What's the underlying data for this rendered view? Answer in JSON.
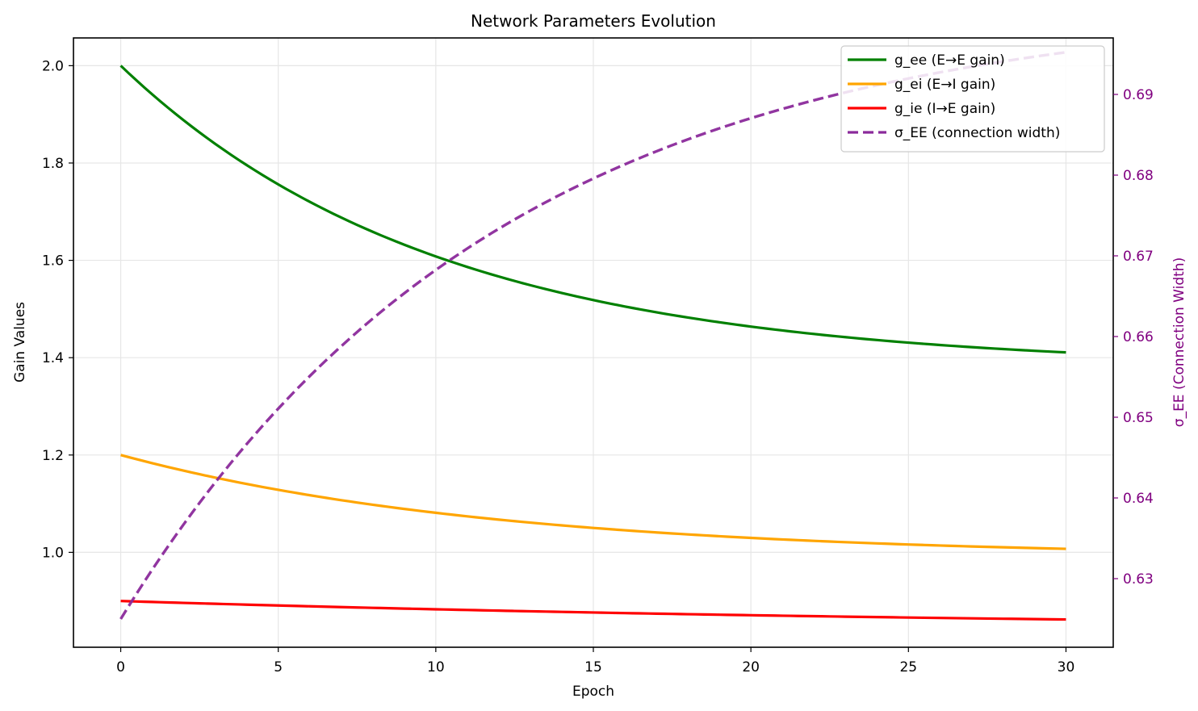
{
  "chart_data": {
    "type": "line",
    "title": "Network Parameters Evolution",
    "xlabel": "Epoch",
    "ylabel": "Gain Values",
    "y2label": "σ_EE (Connection Width)",
    "xlim": [
      -1.5,
      31.5
    ],
    "ylim": [
      0.805,
      2.057
    ],
    "y2lim": [
      0.6215,
      0.697
    ],
    "xticks": [
      0,
      5,
      10,
      15,
      20,
      25,
      30
    ],
    "yticks": [
      1.0,
      1.2,
      1.4,
      1.6,
      1.8,
      2.0
    ],
    "y2ticks": [
      0.63,
      0.64,
      0.65,
      0.66,
      0.67,
      0.68,
      0.69
    ],
    "grid": true,
    "legend_position": "top-right",
    "series": [
      {
        "name": "g_ee (E→E gain)",
        "color": "#008000",
        "axis": "left",
        "style": "solid",
        "model": {
          "start": 2.0,
          "end": 1.38,
          "tau": 10
        },
        "points": [
          [
            0,
            2.0
          ],
          [
            5,
            1.765
          ],
          [
            10,
            1.621
          ],
          [
            15,
            1.533
          ],
          [
            20,
            1.48
          ],
          [
            25,
            1.448
          ],
          [
            30,
            1.428
          ]
        ]
      },
      {
        "name": "g_ei (E→I gain)",
        "color": "#FFA500",
        "axis": "left",
        "style": "solid",
        "model": {
          "start": 1.2,
          "end": 0.99,
          "tau": 12
        },
        "points": [
          [
            0,
            1.2
          ],
          [
            5,
            1.143
          ],
          [
            10,
            1.102
          ],
          [
            15,
            1.073
          ],
          [
            20,
            1.052
          ],
          [
            25,
            1.037
          ],
          [
            30,
            1.027
          ]
        ]
      },
      {
        "name": "g_ie (I→E gain)",
        "color": "#FF0000",
        "axis": "left",
        "style": "solid",
        "model": {
          "start": 0.9,
          "end": 0.84,
          "tau": 30
        },
        "points": [
          [
            0,
            0.9
          ],
          [
            5,
            0.889
          ],
          [
            10,
            0.88
          ],
          [
            15,
            0.873
          ],
          [
            20,
            0.867
          ],
          [
            25,
            0.862
          ],
          [
            30,
            0.861
          ]
        ]
      },
      {
        "name": "σ_EE (connection width)",
        "color": "#8B2A9B",
        "axis": "right",
        "style": "dashed",
        "model": {
          "start": 0.625,
          "end": 0.7015,
          "tau": 12
        },
        "points": [
          [
            0,
            0.625
          ],
          [
            5,
            0.6505
          ],
          [
            10,
            0.6675
          ],
          [
            15,
            0.6785
          ],
          [
            20,
            0.6857
          ],
          [
            25,
            0.6905
          ],
          [
            30,
            0.694
          ]
        ]
      }
    ]
  }
}
